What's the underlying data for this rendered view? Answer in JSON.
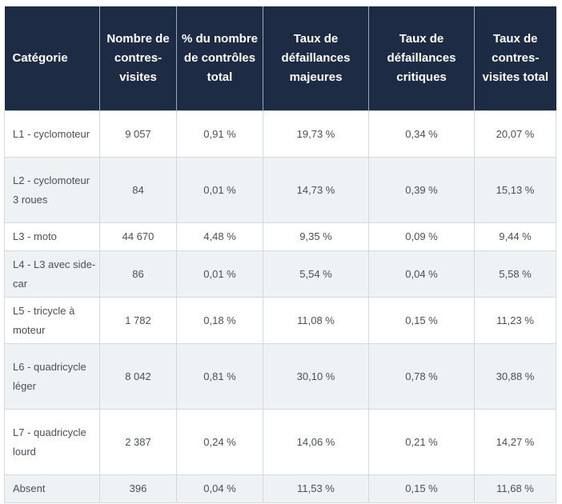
{
  "table": {
    "headers": [
      "Catégorie",
      "Nombre de contres-visites",
      "% du nombre de contrôles total",
      "Taux de défaillances majeures",
      "Taux de défaillances critiques",
      "Taux de contres-visites total"
    ],
    "rows": [
      [
        "L1 - cyclomoteur",
        "9 057",
        "0,91 %",
        "19,73 %",
        "0,34 %",
        "20,07 %"
      ],
      [
        "L2 - cyclomoteur 3 roues",
        "84",
        "0,01 %",
        "14,73 %",
        "0,39 %",
        "15,13 %"
      ],
      [
        "L3 - moto",
        "44 670",
        "4,48 %",
        "9,35 %",
        "0,09 %",
        "9,44 %"
      ],
      [
        "L4 - L3 avec side-car",
        "86",
        "0,01 %",
        "5,54 %",
        "0,04 %",
        "5,58 %"
      ],
      [
        "L5 - tricycle à moteur",
        "1 782",
        "0,18 %",
        "11,08 %",
        "0,15 %",
        "11,23 %"
      ],
      [
        "L6 - quadricycle léger",
        "8 042",
        "0,81 %",
        "30,10 %",
        "0,78 %",
        "30,88 %"
      ],
      [
        "L7 - quadricycle lourd",
        "2 387",
        "0,24 %",
        "14,06 %",
        "0,21 %",
        "14,27 %"
      ],
      [
        "Absent",
        "396",
        "0,04 %",
        "11,53 %",
        "0,15 %",
        "11,68 %"
      ]
    ]
  },
  "colors": {
    "header_bg": "#1e2b44",
    "header_text": "#ffffff",
    "row_alt_bg": "#eef2f4",
    "cell_text": "#4a4f5a"
  }
}
